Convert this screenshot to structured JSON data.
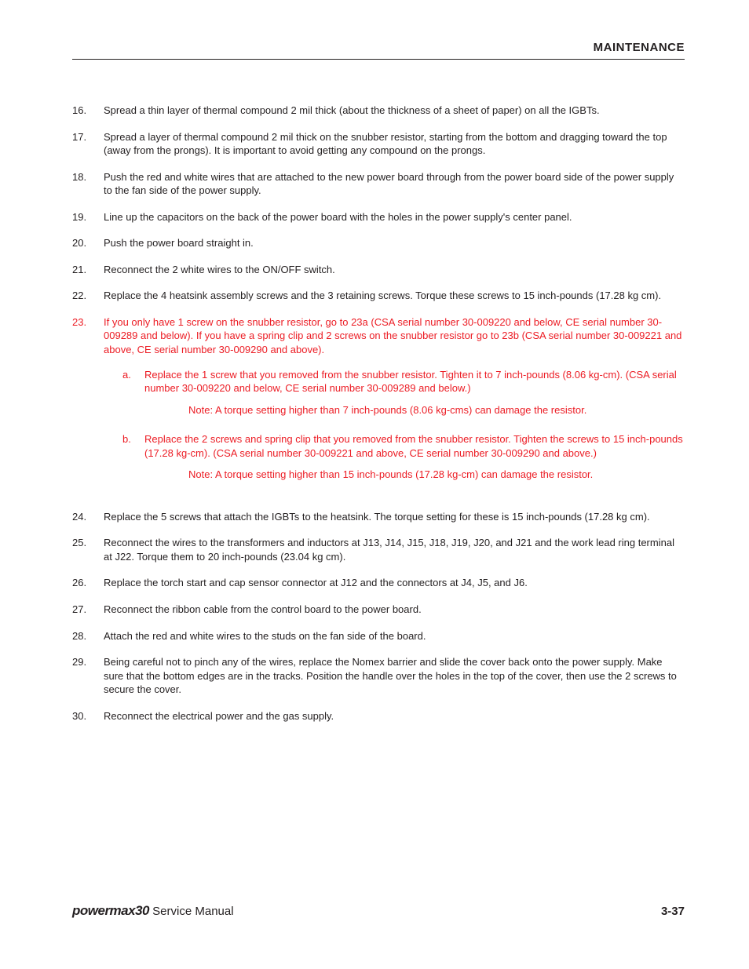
{
  "colors": {
    "text": "#231f20",
    "accent": "#ec1c24",
    "background": "#ffffff",
    "rule": "#231f20"
  },
  "typography": {
    "body_fontsize_pt": 10,
    "header_fontsize_pt": 11,
    "line_height": 1.35,
    "font_family": "Arial"
  },
  "header": {
    "title": "MAINTENANCE"
  },
  "steps": [
    {
      "num": "16.",
      "text": "Spread a thin layer of thermal compound 2 mil thick (about the thickness of a sheet of paper) on all the IGBTs.",
      "red": false
    },
    {
      "num": "17.",
      "text": "Spread a layer of thermal compound 2 mil thick on the snubber resistor, starting from the bottom and dragging toward the top (away from the prongs). It is important to avoid getting any compound on the prongs.",
      "red": false
    },
    {
      "num": "18.",
      "text": "Push the red and white wires that are attached to the new power board through from the power board side of the power supply to the fan side of the power supply.",
      "red": false
    },
    {
      "num": "19.",
      "text": "Line up the capacitors on the back of the power board with the holes in the power supply's center panel.",
      "red": false
    },
    {
      "num": "20.",
      "text": "Push the power board straight in.",
      "red": false
    },
    {
      "num": "21.",
      "text": "Reconnect the 2 white wires to the ON/OFF switch.",
      "red": false
    },
    {
      "num": "22.",
      "text": "Replace the 4 heatsink assembly screws and the 3 retaining screws. Torque these screws to 15 inch-pounds (17.28 kg cm).",
      "red": false
    },
    {
      "num": "23.",
      "text": "If you only have 1 screw on the snubber resistor, go to 23a (CSA serial number 30-009220 and below, CE serial number 30-009289 and below). If you have a spring clip and 2 screws on the snubber resistor go to 23b (CSA serial number 30-009221 and above, CE serial number 30-009290 and above).",
      "red": true,
      "sub": [
        {
          "letter": "a.",
          "text": "Replace the 1 screw that you removed from the snubber resistor. Tighten it to 7 inch-pounds (8.06 kg-cm). (CSA serial number 30-009220 and below, CE serial number 30-009289 and below.)",
          "note_label": "Note:",
          "note": "A torque setting higher than 7 inch-pounds (8.06 kg-cms) can damage the resistor."
        },
        {
          "letter": "b.",
          "text": "Replace the 2 screws and spring clip that you removed from the snubber resistor. Tighten the screws to 15 inch-pounds (17.28 kg-cm). (CSA serial number 30-009221 and above, CE serial number 30-009290 and above.)",
          "note_label": "Note:",
          "note": "A torque setting higher than 15 inch-pounds (17.28 kg-cm) can damage the resistor."
        }
      ]
    },
    {
      "num": "24.",
      "text": "Replace the 5 screws that attach the IGBTs to the heatsink. The torque setting for these is 15 inch-pounds (17.28 kg cm).",
      "red": false
    },
    {
      "num": "25.",
      "text": "Reconnect the wires to the transformers and inductors at J13, J14, J15, J18, J19, J20, and J21 and the work lead ring terminal at J22. Torque them to 20 inch-pounds (23.04 kg cm).",
      "red": false
    },
    {
      "num": "26.",
      "text": "Replace the torch start and cap sensor connector at J12 and the connectors at J4, J5, and J6.",
      "red": false
    },
    {
      "num": "27.",
      "text": "Reconnect the ribbon cable from the control board to the power board.",
      "red": false
    },
    {
      "num": "28.",
      "text": "Attach the red and white wires to the studs on the fan side of the board.",
      "red": false
    },
    {
      "num": "29.",
      "text": "Being careful not to pinch any of the wires, replace the Nomex barrier and slide the cover back onto the power supply. Make sure that the bottom edges are in the tracks. Position the handle over the holes in the top of the cover, then use the 2 screws to secure the cover.",
      "red": false
    },
    {
      "num": "30.",
      "text": "Reconnect the electrical power and the gas supply.",
      "red": false
    }
  ],
  "footer": {
    "brand": "powermax30",
    "doc": "  Service Manual",
    "page": "3-37"
  }
}
